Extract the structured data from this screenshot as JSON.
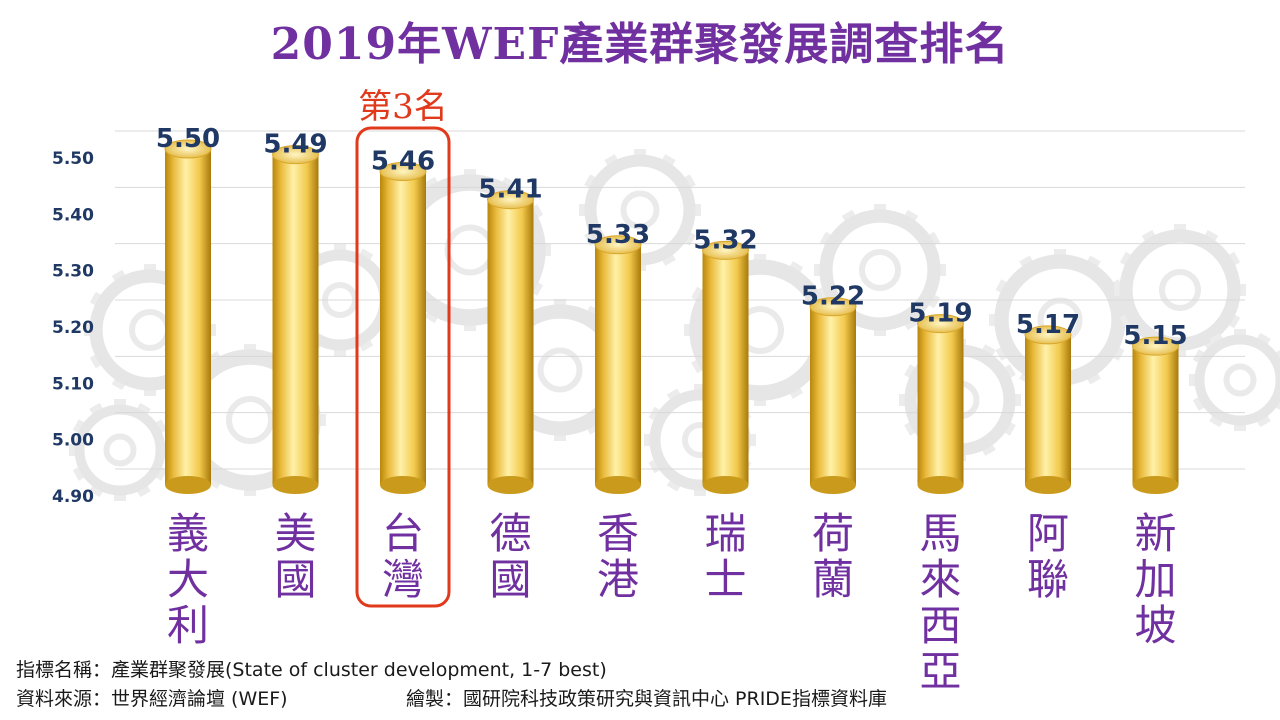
{
  "chart_data": {
    "type": "bar",
    "title": "2019年WEF產業群聚發展調查排名",
    "categories": [
      "義大利",
      "美國",
      "台灣",
      "德國",
      "香港",
      "瑞士",
      "荷蘭",
      "馬來西亞",
      "阿聯",
      "新加坡"
    ],
    "values": [
      5.5,
      5.49,
      5.46,
      5.41,
      5.33,
      5.32,
      5.22,
      5.19,
      5.17,
      5.15
    ],
    "value_labels": [
      "5.50",
      "5.49",
      "5.46",
      "5.41",
      "5.33",
      "5.32",
      "5.22",
      "5.19",
      "5.17",
      "5.15"
    ],
    "y_ticks": [
      "4.90",
      "5.00",
      "5.10",
      "5.20",
      "5.30",
      "5.40",
      "5.50"
    ],
    "ylim": [
      4.9,
      5.5
    ],
    "xlabel": "",
    "ylabel": "",
    "grid": true,
    "highlight_index": 2,
    "highlight_label": "第3名",
    "colors": {
      "title": "#7030a0",
      "category_label": "#7030a0",
      "value_label": "#1f3864",
      "axis_label": "#1f3864",
      "bar_main": "#f2c94c",
      "bar_light": "#fff1a8",
      "bar_dark": "#b8860b",
      "highlight": "#e0391b",
      "grid": "#d9d9d9"
    }
  },
  "footer": {
    "indicator": "指標名稱：產業群聚發展(State of cluster development, 1-7 best)",
    "source": "資料來源：世界經濟論壇 (WEF)",
    "credit": "繪製：國研院科技政策研究與資訊中心 PRIDE指標資料庫"
  }
}
